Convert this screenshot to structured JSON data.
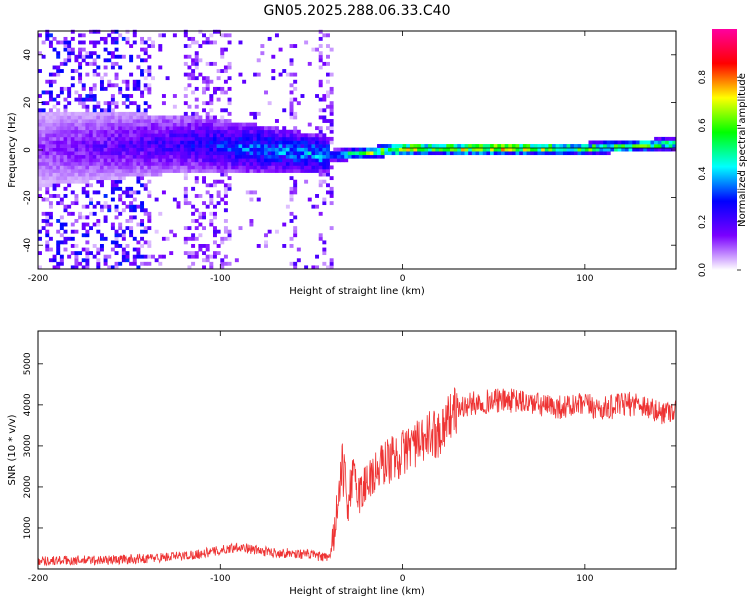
{
  "title": "GN05.2025.288.06.33.C40",
  "chart_data": [
    {
      "type": "heatmap",
      "xlabel": "Height of straight line (km)",
      "ylabel": "Frequency (Hz)",
      "xlim": [
        -200,
        150
      ],
      "ylim": [
        -50,
        50
      ],
      "xticks": [
        -200,
        -100,
        0,
        100
      ],
      "yticks": [
        -40,
        -20,
        0,
        20,
        40
      ],
      "colorbar": {
        "label": "Normalized spectral amplitude",
        "range": [
          0,
          1
        ],
        "ticks": [
          "0.0",
          "0.2",
          "0.4",
          "0.6",
          "0.8"
        ],
        "colormap": [
          "#ffffff",
          "#7a00ff",
          "#0000ff",
          "#00ffff",
          "#00ff00",
          "#ffff00",
          "#ff0000",
          "#ff00a0"
        ]
      },
      "trend": [
        {
          "x": -200,
          "center_hz": 0,
          "peak_amplitude": 0.15
        },
        {
          "x": -120,
          "center_hz": 2,
          "peak_amplitude": 0.3
        },
        {
          "x": -80,
          "center_hz": 0,
          "peak_amplitude": 0.45
        },
        {
          "x": -40,
          "center_hz": -3,
          "peak_amplitude": 0.5
        },
        {
          "x": -20,
          "center_hz": -2,
          "peak_amplitude": 0.75
        },
        {
          "x": 0,
          "center_hz": 0,
          "peak_amplitude": 0.9
        },
        {
          "x": 50,
          "center_hz": 0,
          "peak_amplitude": 0.95
        },
        {
          "x": 100,
          "center_hz": 0,
          "peak_amplitude": 0.8
        },
        {
          "x": 150,
          "center_hz": 2,
          "peak_amplitude": 0.7
        }
      ]
    },
    {
      "type": "line",
      "xlabel": "Height of straight line (km)",
      "ylabel": "SNR (10 * v/v)",
      "xlim": [
        -200,
        150
      ],
      "ylim": [
        0,
        5800
      ],
      "xticks": [
        -200,
        -100,
        0,
        100
      ],
      "yticks": [
        1000,
        2000,
        3000,
        4000,
        5000
      ],
      "color": "#ee3333",
      "series": [
        {
          "name": "SNR",
          "x": [
            -200,
            -180,
            -160,
            -140,
            -120,
            -110,
            -100,
            -90,
            -80,
            -70,
            -60,
            -50,
            -45,
            -40,
            -38,
            -35,
            -33,
            -30,
            -28,
            -25,
            -22,
            -20,
            -15,
            -10,
            -5,
            0,
            5,
            10,
            15,
            20,
            25,
            30,
            40,
            50,
            60,
            70,
            80,
            90,
            100,
            110,
            120,
            130,
            140,
            150
          ],
          "y": [
            200,
            210,
            220,
            260,
            320,
            380,
            450,
            550,
            450,
            400,
            380,
            350,
            300,
            250,
            800,
            1700,
            2500,
            1600,
            2200,
            2000,
            1800,
            2200,
            2300,
            2600,
            2700,
            2800,
            3100,
            3000,
            3300,
            3300,
            3700,
            3900,
            4050,
            4100,
            4100,
            4050,
            3950,
            3950,
            4000,
            3900,
            4000,
            4050,
            3800,
            3900
          ]
        }
      ]
    }
  ]
}
